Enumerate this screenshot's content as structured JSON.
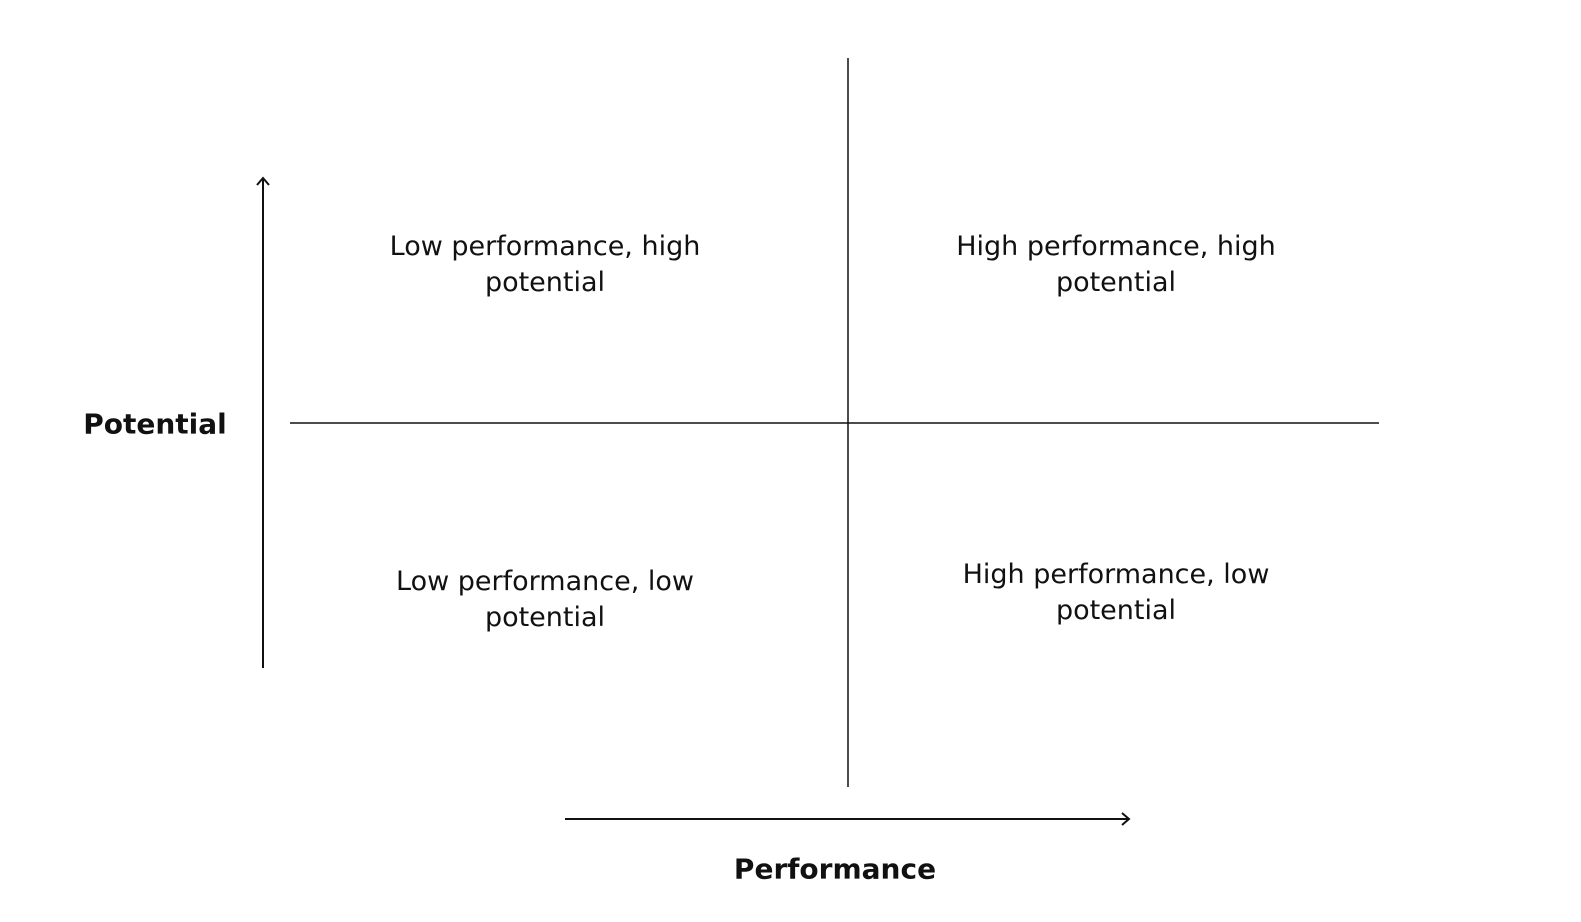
{
  "axes": {
    "y_label": "Potential",
    "x_label": "Performance"
  },
  "quadrants": [
    {
      "label": "Low performance, high potential"
    },
    {
      "label": "High performance, high potential"
    },
    {
      "label": "Low performance, low potential"
    },
    {
      "label": "High performance, low potential"
    }
  ]
}
